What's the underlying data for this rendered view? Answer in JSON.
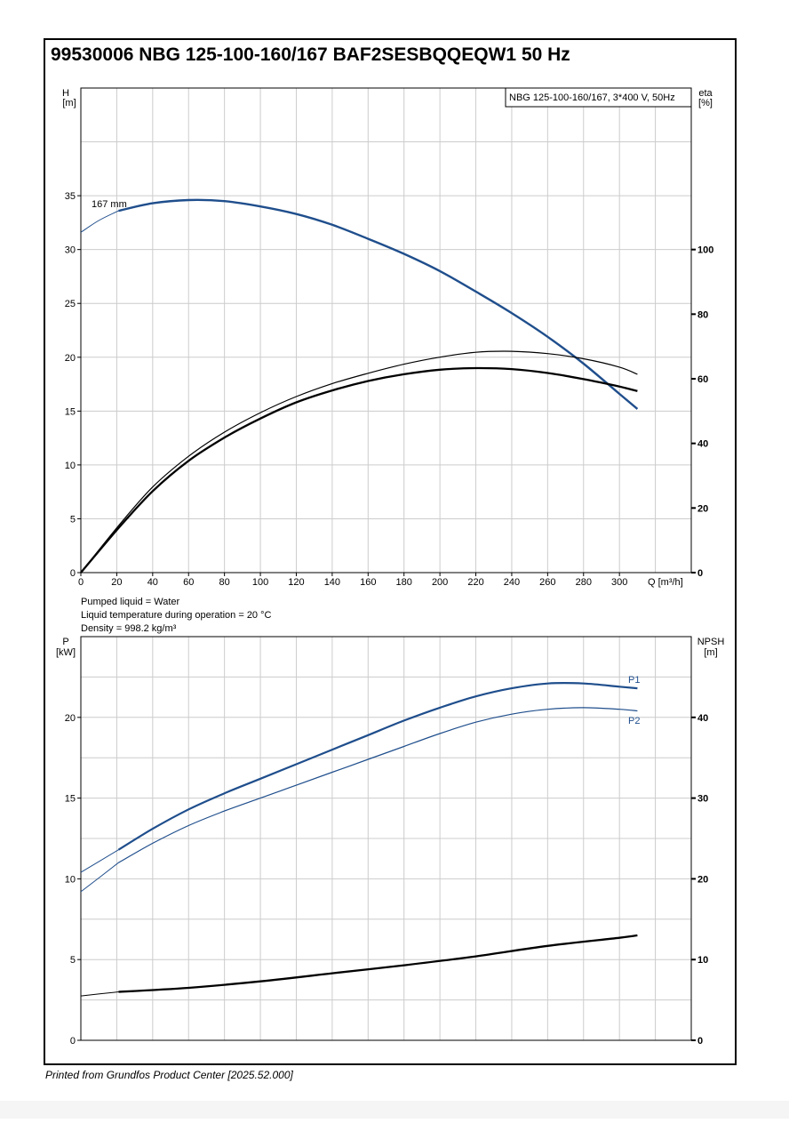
{
  "title": "99530006 NBG 125-100-160/167 BAF2SESBQQEQW1 50 Hz",
  "footer": "Printed from Grundfos Product Center [2025.52.000]",
  "colors": {
    "blue": "#1f4e8c",
    "black": "#000000",
    "grid": "#cccccc"
  },
  "info": {
    "liquid": "Pumped liquid = Water",
    "temperature": "Liquid temperature during operation = 20 °C",
    "density": "Density = 998.2 kg/m³"
  },
  "chart_data": [
    {
      "type": "line",
      "legend_box": "NBG 125-100-160/167, 3*400 V, 50Hz",
      "xlabel": "Q [m³/h]",
      "ylabel_left": [
        "H",
        "[m]"
      ],
      "ylabel_right": [
        "eta",
        "[%]"
      ],
      "xlim": [
        0,
        340
      ],
      "ylim_left": [
        0,
        45
      ],
      "ylim_right": [
        0,
        150
      ],
      "x_ticks": [
        0,
        20,
        40,
        60,
        80,
        100,
        120,
        140,
        160,
        180,
        200,
        220,
        240,
        260,
        280,
        300
      ],
      "y_ticks_left": [
        0,
        5,
        10,
        15,
        20,
        25,
        30,
        35
      ],
      "y_ticks_right": [
        0,
        20,
        40,
        60,
        80,
        100
      ],
      "grid": true,
      "series": [
        {
          "name": "167 mm",
          "axis": "left",
          "color": "#1f4e8c",
          "x": [
            0,
            10,
            21,
            40,
            60,
            80,
            100,
            120,
            140,
            160,
            180,
            200,
            220,
            240,
            260,
            280,
            300,
            310
          ],
          "y": [
            31.6,
            32.7,
            33.6,
            34.3,
            34.6,
            34.5,
            34.0,
            33.3,
            32.3,
            31.0,
            29.6,
            28.0,
            26.1,
            24.1,
            21.9,
            19.4,
            16.6,
            15.2
          ],
          "thin_until": 21
        },
        {
          "axis": "right",
          "color": "#000000",
          "x": [
            0,
            21,
            40,
            60,
            80,
            100,
            120,
            140,
            160,
            180,
            200,
            220,
            240,
            260,
            280,
            300,
            310
          ],
          "y": [
            0,
            14.5,
            26.5,
            36.0,
            43.5,
            49.5,
            54.5,
            58.5,
            61.7,
            64.5,
            66.7,
            68.2,
            68.5,
            67.8,
            66.2,
            63.6,
            61.4
          ],
          "width": 1.2
        },
        {
          "axis": "right",
          "color": "#000000",
          "x": [
            0,
            21,
            40,
            60,
            80,
            100,
            120,
            140,
            160,
            180,
            200,
            220,
            240,
            260,
            280,
            300,
            310
          ],
          "y": [
            0,
            13.8,
            25.2,
            34.6,
            41.8,
            47.7,
            52.7,
            56.4,
            59.3,
            61.4,
            62.8,
            63.3,
            63.0,
            61.8,
            59.9,
            57.6,
            56.2
          ],
          "width": 2.3
        }
      ]
    },
    {
      "type": "line",
      "xlim": [
        0,
        340
      ],
      "ylim_left": [
        0,
        25
      ],
      "ylim_right": [
        0,
        50
      ],
      "ylabel_left": [
        "P",
        "[kW]"
      ],
      "ylabel_right": [
        "NPSH",
        "[m]"
      ],
      "y_ticks_left": [
        0,
        5,
        10,
        15,
        20
      ],
      "y_ticks_right": [
        0,
        10,
        20,
        30,
        40
      ],
      "grid": true,
      "series": [
        {
          "name": "P1",
          "axis": "left",
          "color": "#1f4e8c",
          "x": [
            0,
            21,
            40,
            60,
            80,
            100,
            120,
            140,
            160,
            180,
            200,
            220,
            240,
            260,
            280,
            300,
            310
          ],
          "y": [
            10.4,
            11.8,
            13.1,
            14.3,
            15.3,
            16.2,
            17.1,
            18.0,
            18.9,
            19.8,
            20.6,
            21.3,
            21.8,
            22.1,
            22.1,
            21.9,
            21.8
          ],
          "thin_until": 21,
          "width": 2.2
        },
        {
          "name": "P2",
          "axis": "left",
          "color": "#1f4e8c",
          "x": [
            0,
            21,
            40,
            60,
            80,
            100,
            120,
            140,
            160,
            180,
            200,
            220,
            240,
            260,
            280,
            300,
            310
          ],
          "y": [
            9.2,
            11.0,
            12.2,
            13.3,
            14.2,
            15.0,
            15.8,
            16.6,
            17.4,
            18.2,
            19.0,
            19.7,
            20.2,
            20.5,
            20.6,
            20.5,
            20.4
          ],
          "thin_until": 21,
          "width": 1.2
        },
        {
          "axis": "right",
          "color": "#000000",
          "x": [
            0,
            21,
            60,
            100,
            140,
            180,
            220,
            260,
            300,
            310
          ],
          "y": [
            5.5,
            6.0,
            6.5,
            7.3,
            8.3,
            9.3,
            10.4,
            11.7,
            12.7,
            13.0
          ],
          "thin_until": 21,
          "width": 2.3
        }
      ]
    }
  ]
}
